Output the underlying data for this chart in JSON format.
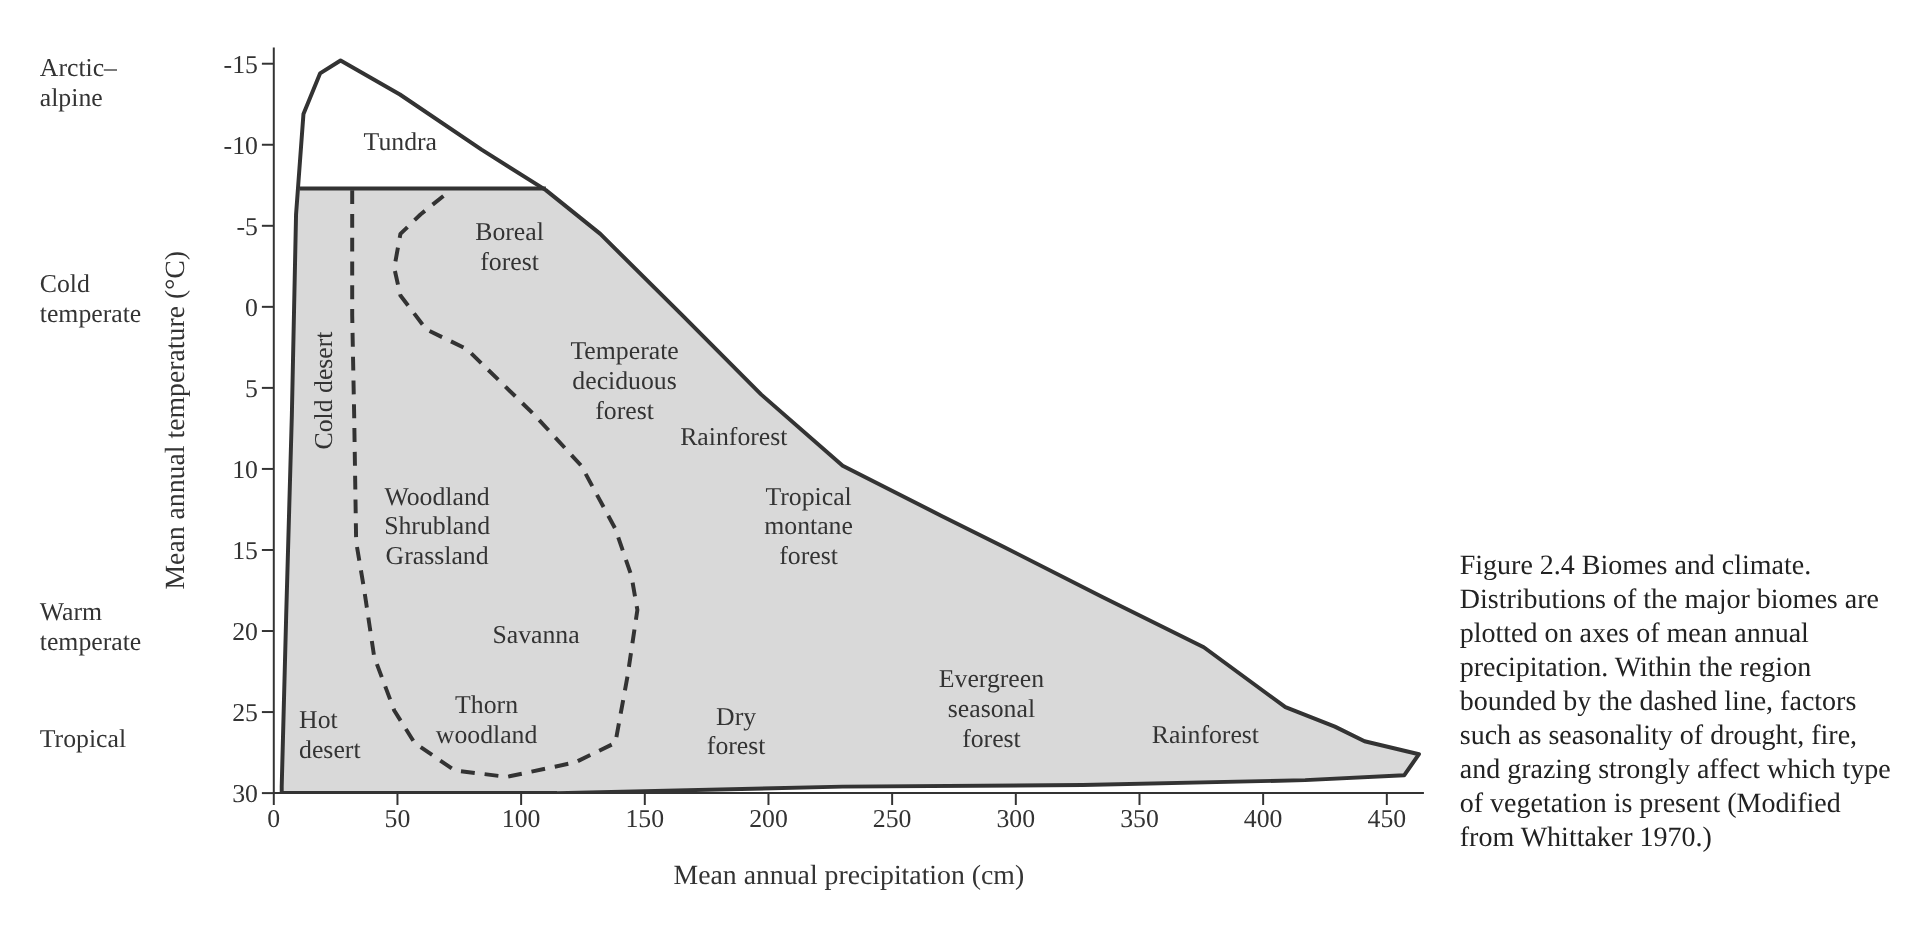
{
  "chart_data": {
    "type": "line",
    "xlabel": "Mean annual precipitation (cm)",
    "ylabel": "Mean annual temperature (°C)",
    "xlim": [
      0,
      465
    ],
    "xticks": [
      0,
      50,
      100,
      150,
      200,
      250,
      300,
      350,
      400,
      450
    ],
    "ylim": [
      30,
      -16
    ],
    "yticks": [
      -15,
      -10,
      -5,
      0,
      5,
      10,
      15,
      20,
      25,
      30
    ],
    "series": [
      {
        "type": "area",
        "color": "#333333",
        "line_style": "solid",
        "x": [
          114.5,
          230,
          327,
          417,
          457,
          463,
          441,
          429,
          409,
          376,
          335,
          295,
          270,
          230,
          197,
          165,
          132,
          110,
          84,
          51,
          27,
          18.7,
          12,
          9,
          7.3,
          5,
          3.2,
          3.2,
          114.5
        ],
        "values": [
          30,
          29.6,
          29.5,
          29.2,
          28.9,
          27.6,
          26.8,
          25.9,
          24.7,
          21,
          17.9,
          14.8,
          12.9,
          9.8,
          5.4,
          0.5,
          -4.5,
          -7.2,
          -9.7,
          -13.1,
          -15.2,
          -14.4,
          -11.9,
          -5.7,
          6.7,
          19.1,
          29.6,
          30,
          30
        ]
      },
      {
        "color": "#333333",
        "line_style": "solid",
        "x": [
          10.5,
          60,
          110
        ],
        "values": [
          -7.3,
          -7.3,
          -7.3
        ]
      },
      {
        "color": "#333333",
        "line_style": "dashed",
        "x": [
          31.7,
          31.7,
          32.5,
          33.3,
          36.6,
          40.6,
          48.7,
          56.9,
          73.1,
          94.2,
          121.9,
          138.1,
          143,
          147,
          144.6,
          138.1,
          124.3,
          105.6,
          78,
          61.7,
          51.2,
          48.7,
          51.2,
          59.3,
          71.5
        ],
        "values": [
          -7.2,
          0.5,
          6.7,
          14.5,
          17.5,
          21.6,
          24.9,
          26.9,
          28.6,
          29,
          28.1,
          26.9,
          22.8,
          18.7,
          16.6,
          13.7,
          9.8,
          6.7,
          2.6,
          1.4,
          -0.7,
          -2.4,
          -4.5,
          -5.7,
          -7.2
        ]
      }
    ],
    "annotations": [
      "Tundra",
      "Boreal\nforest",
      "Temperate\ndeciduous\nforest",
      "Rainforest",
      "Tropical\nmontane\nforest",
      "Cold desert",
      "Woodland\nShrubland\nGrassland",
      "Savanna",
      "Thorn\nwoodland",
      "Hot\ndesert",
      "Dry\nforest",
      "Evergreen\nseasonal\nforest",
      "Rainforest",
      "Arctic–\nalpine",
      "Cold\ntemperate",
      "Warm\ntemperate",
      "Tropical",
      "Figure 2.4   Biomes and climate. Distributions of the major biomes are plotted on axes of mean annual precipitation. Within the region bounded by the dashed line, factors such as seasonality of drought, fire, and grazing strongly affect which type of vegetation is present (Modified from Whittaker 1970.)"
    ]
  }
}
